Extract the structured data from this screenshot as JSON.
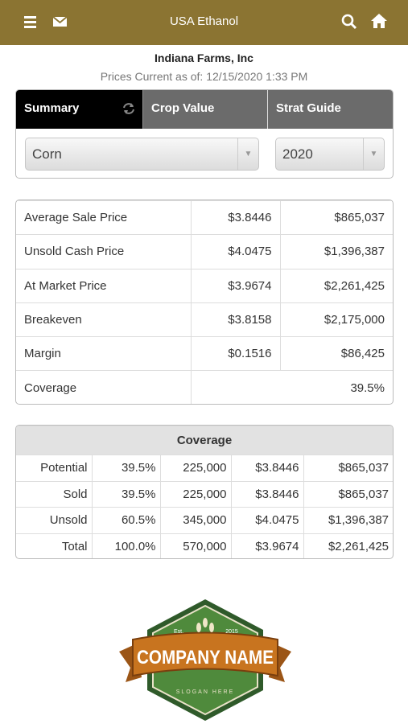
{
  "header": {
    "title": "USA Ethanol"
  },
  "farm": {
    "name": "Indiana Farms, Inc",
    "prices_current": "Prices Current as of: 12/15/2020 1:33 PM"
  },
  "tabs": [
    "Summary",
    "Crop Value",
    "Strat Guide"
  ],
  "selects": {
    "crop": "Corn",
    "year": "2020"
  },
  "summary": {
    "rows": [
      [
        "Average Sale Price",
        "$3.8446",
        "$865,037"
      ],
      [
        "Unsold Cash Price",
        "$4.0475",
        "$1,396,387"
      ],
      [
        "At Market Price",
        "$3.9674",
        "$2,261,425"
      ],
      [
        "Breakeven",
        "$3.8158",
        "$2,175,000"
      ],
      [
        "Margin",
        "$0.1516",
        "$86,425"
      ],
      [
        "Coverage",
        "39.5%"
      ]
    ]
  },
  "coverage": {
    "title": "Coverage",
    "rows": [
      [
        "Potential",
        "39.5%",
        "225,000",
        "$3.8446",
        "$865,037"
      ],
      [
        "Sold",
        "39.5%",
        "225,000",
        "$3.8446",
        "$865,037"
      ],
      [
        "Unsold",
        "60.5%",
        "345,000",
        "$4.0475",
        "$1,396,387"
      ],
      [
        "Total",
        "100.0%",
        "570,000",
        "$3.9674",
        "$2,261,425"
      ]
    ]
  },
  "logo": {
    "est": "Est.",
    "year": "2015",
    "name": "COMPANY NAME",
    "slogan": "SLOGAN HERE"
  }
}
